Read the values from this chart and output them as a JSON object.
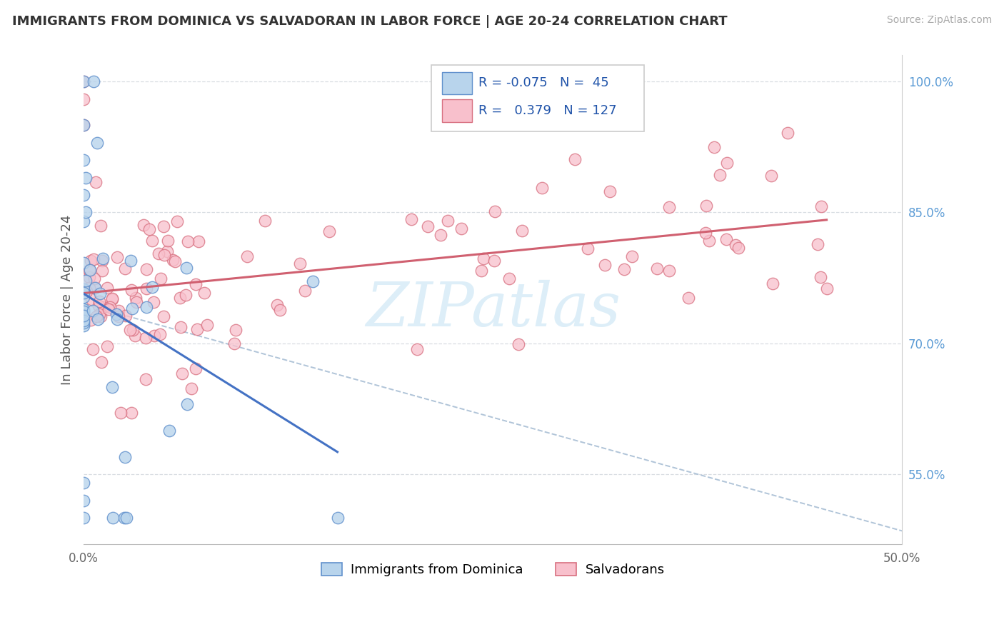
{
  "title": "IMMIGRANTS FROM DOMINICA VS SALVADORAN IN LABOR FORCE | AGE 20-24 CORRELATION CHART",
  "source": "Source: ZipAtlas.com",
  "ylabel": "In Labor Force | Age 20-24",
  "xlim": [
    0.0,
    0.5
  ],
  "ylim": [
    0.47,
    1.03
  ],
  "xtick_positions": [
    0.0,
    0.5
  ],
  "xtick_labels": [
    "0.0%",
    "50.0%"
  ],
  "ytick_values": [
    0.55,
    0.7,
    0.85,
    1.0
  ],
  "ytick_labels": [
    "55.0%",
    "70.0%",
    "85.0%",
    "100.0%"
  ],
  "grid_ytick_values": [
    0.55,
    0.7,
    0.85,
    1.0
  ],
  "blue_R": -0.075,
  "blue_N": 45,
  "pink_R": 0.379,
  "pink_N": 127,
  "blue_dot_color": "#b8d4ec",
  "blue_edge_color": "#6090cc",
  "blue_line_color": "#4472c4",
  "pink_dot_color": "#f8c0cc",
  "pink_edge_color": "#d87080",
  "pink_line_color": "#d06070",
  "dashed_color": "#b0c4d8",
  "grid_color": "#d8dde2",
  "watermark_text": "ZIPatlas",
  "watermark_color": "#ddeef8",
  "legend_label_blue": "Immigrants from Dominica",
  "legend_label_pink": "Salvadorans",
  "title_fontsize": 13,
  "source_fontsize": 10,
  "tick_fontsize": 12,
  "ylabel_fontsize": 13
}
